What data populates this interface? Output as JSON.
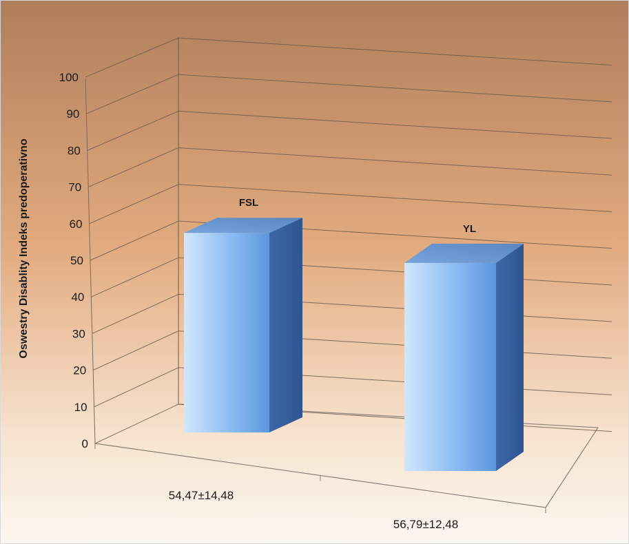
{
  "chart_data": {
    "type": "bar",
    "ylabel": "Oswestry Disablity Indeks predoperativno",
    "xlabel": "",
    "ylim": [
      0,
      100
    ],
    "yticks": [
      0,
      10,
      20,
      30,
      40,
      50,
      60,
      70,
      80,
      90,
      100
    ],
    "grid": true,
    "three_d": true,
    "categories": [
      "54,47±14,48",
      "56,79±12,48"
    ],
    "series": [
      {
        "values": [
          54.47,
          56.79
        ]
      }
    ],
    "bar_names": [
      "FSL",
      "YL"
    ],
    "colors": {
      "bar_front": "#7fb1ea",
      "bar_side": "#3f6aa6",
      "bar_top": "#6d9ad6",
      "background_top": "#b07e5c",
      "background_bottom": "#fbf2e8",
      "gridline": "#6b5a4c"
    }
  }
}
